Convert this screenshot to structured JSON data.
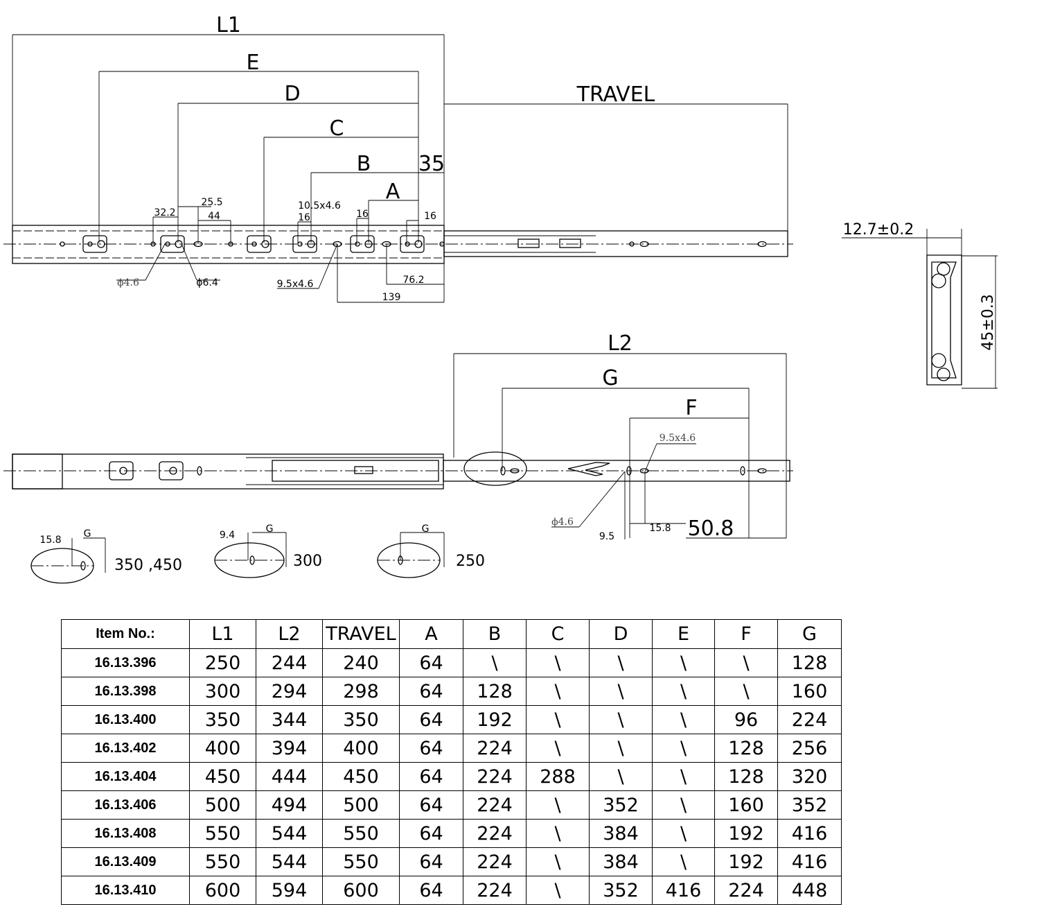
{
  "top_view": {
    "dims": {
      "L1": "L1",
      "E": "E",
      "D": "D",
      "C": "C",
      "B": "B",
      "A": "A",
      "travel": "TRAVEL",
      "d35": "35"
    },
    "small": {
      "d32_2": "32.2",
      "d25_5": "25.5",
      "d44": "44",
      "d10_5x4_6": "10.5x4.6",
      "d16a": "16",
      "d16b": "16",
      "d16c": "16",
      "phi4_6": "ϕ4.6",
      "phi6_4": "ϕ6.4",
      "slot9_5x4_6": "9.5x4.6",
      "d76_2": "76.2",
      "d139": "139"
    }
  },
  "profile": {
    "width": "12.7±0.2",
    "height": "45±0.3"
  },
  "bottom_view": {
    "dims": {
      "L2": "L2",
      "G": "G",
      "F": "F",
      "d50_8": "50.8"
    },
    "small": {
      "slot": "9.5x4.6",
      "phi": "ϕ4.6",
      "d9_5": "9.5",
      "d15_8": "15.8"
    }
  },
  "details": [
    {
      "dim": "15.8",
      "g": "G",
      "label": "350 ,450"
    },
    {
      "dim": "9.4",
      "g": "G",
      "label": "300"
    },
    {
      "dim": "",
      "g": "G",
      "label": "250"
    }
  ],
  "table": {
    "headers": [
      "Item No.:",
      "L1",
      "L2",
      "TRAVEL",
      "A",
      "B",
      "C",
      "D",
      "E",
      "F",
      "G"
    ],
    "rows": [
      [
        "16.13.396",
        "250",
        "244",
        "240",
        "64",
        "\\",
        "\\",
        "\\",
        "\\",
        "\\",
        "128"
      ],
      [
        "16.13.398",
        "300",
        "294",
        "298",
        "64",
        "128",
        "\\",
        "\\",
        "\\",
        "\\",
        "160"
      ],
      [
        "16.13.400",
        "350",
        "344",
        "350",
        "64",
        "192",
        "\\",
        "\\",
        "\\",
        "96",
        "224"
      ],
      [
        "16.13.402",
        "400",
        "394",
        "400",
        "64",
        "224",
        "\\",
        "\\",
        "\\",
        "128",
        "256"
      ],
      [
        "16.13.404",
        "450",
        "444",
        "450",
        "64",
        "224",
        "288",
        "\\",
        "\\",
        "128",
        "320"
      ],
      [
        "16.13.406",
        "500",
        "494",
        "500",
        "64",
        "224",
        "\\",
        "352",
        "\\",
        "160",
        "352"
      ],
      [
        "16.13.408",
        "550",
        "544",
        "550",
        "64",
        "224",
        "\\",
        "384",
        "\\",
        "192",
        "416"
      ],
      [
        "16.13.409",
        "550",
        "544",
        "550",
        "64",
        "224",
        "\\",
        "384",
        "\\",
        "192",
        "416"
      ],
      [
        "16.13.410",
        "600",
        "594",
        "600",
        "64",
        "224",
        "\\",
        "352",
        "416",
        "224",
        "448"
      ]
    ]
  }
}
